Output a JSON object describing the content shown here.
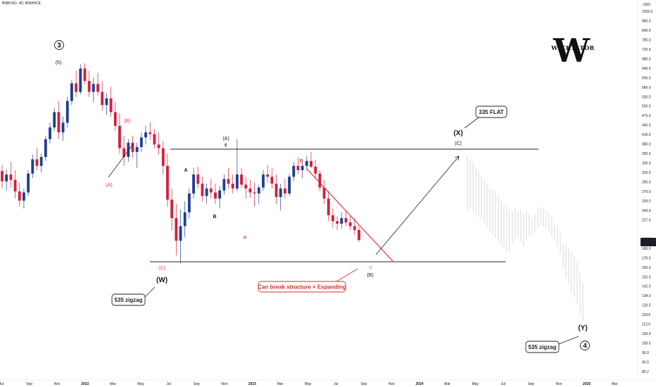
{
  "header": {
    "symbol": "BNBUSD, 4D, BINANCE",
    "currency": "USD"
  },
  "logo": {
    "letter": "W",
    "name": "WICKTATOR"
  },
  "price_axis": {
    "ticks": [
      "1025.0",
      "960.0",
      "845.0",
      "785.0",
      "725.0",
      "680.0",
      "645.0",
      "605.0",
      "566.0",
      "535.0",
      "505.0",
      "475.0",
      "445.0",
      "415.0",
      "385.0",
      "355.0",
      "335.0",
      "315.0",
      "295.0",
      "275.0",
      "259.0",
      "243.0",
      "227.0",
      "211.4",
      "190.5",
      "180.0",
      "170.0",
      "160.0",
      "152.0",
      "142.0",
      "134.0",
      "126.5",
      "118.6",
      "112.0",
      "106.0",
      "100.0",
      "95.0",
      "90.0",
      "85.2"
    ],
    "current_price": "211.4",
    "countdown": "3D 13H"
  },
  "time_axis": {
    "ticks": [
      "Jul",
      "Sep",
      "Nov",
      "2022",
      "Mar",
      "May",
      "Jul",
      "Sep",
      "Nov",
      "2023",
      "Mar",
      "May",
      "Jul",
      "Sep",
      "Nov",
      "2024",
      "Mar",
      "May",
      "Jul",
      "Sep",
      "Nov",
      "2025",
      "Mar"
    ]
  },
  "chart_data": {
    "type": "candlestick",
    "ylim": [
      85.2,
      1025.0
    ],
    "scale": "log",
    "levels": [
      {
        "name": "range high",
        "price": 405
      },
      {
        "name": "range low",
        "price": 185
      }
    ],
    "candles_ohlc_approx": [
      [
        338,
        352,
        300,
        315
      ],
      [
        315,
        342,
        296,
        330
      ],
      [
        330,
        360,
        302,
        318
      ],
      [
        318,
        340,
        280,
        294
      ],
      [
        294,
        312,
        265,
        276
      ],
      [
        276,
        300,
        262,
        292
      ],
      [
        292,
        340,
        285,
        332
      ],
      [
        332,
        378,
        322,
        366
      ],
      [
        366,
        395,
        340,
        350
      ],
      [
        350,
        380,
        335,
        372
      ],
      [
        372,
        430,
        362,
        420
      ],
      [
        420,
        470,
        408,
        455
      ],
      [
        455,
        520,
        445,
        505
      ],
      [
        505,
        545,
        420,
        440
      ],
      [
        440,
        490,
        415,
        470
      ],
      [
        470,
        560,
        455,
        545
      ],
      [
        545,
        630,
        530,
        615
      ],
      [
        615,
        670,
        560,
        580
      ],
      [
        580,
        700,
        570,
        680
      ],
      [
        680,
        705,
        610,
        625
      ],
      [
        625,
        670,
        560,
        580
      ],
      [
        580,
        640,
        540,
        612
      ],
      [
        612,
        660,
        565,
        580
      ],
      [
        580,
        625,
        510,
        530
      ],
      [
        530,
        575,
        495,
        555
      ],
      [
        555,
        600,
        490,
        505
      ],
      [
        505,
        540,
        445,
        460
      ],
      [
        460,
        500,
        380,
        395
      ],
      [
        395,
        430,
        350,
        372
      ],
      [
        372,
        420,
        360,
        410
      ],
      [
        410,
        430,
        370,
        385
      ],
      [
        385,
        410,
        345,
        398
      ],
      [
        398,
        440,
        385,
        425
      ],
      [
        425,
        460,
        405,
        440
      ],
      [
        440,
        470,
        418,
        435
      ],
      [
        435,
        450,
        395,
        405
      ],
      [
        405,
        440,
        378,
        395
      ],
      [
        395,
        415,
        330,
        350
      ],
      [
        350,
        380,
        265,
        278
      ],
      [
        278,
        300,
        225,
        245
      ],
      [
        245,
        270,
        190,
        210
      ],
      [
        210,
        260,
        180,
        232
      ],
      [
        232,
        275,
        215,
        255
      ],
      [
        255,
        300,
        245,
        290
      ],
      [
        290,
        345,
        280,
        330
      ],
      [
        330,
        348,
        300,
        310
      ],
      [
        310,
        325,
        275,
        285
      ],
      [
        285,
        310,
        270,
        300
      ],
      [
        300,
        320,
        280,
        292
      ],
      [
        292,
        310,
        270,
        280
      ],
      [
        280,
        305,
        262,
        296
      ],
      [
        296,
        330,
        288,
        320
      ],
      [
        320,
        345,
        300,
        310
      ],
      [
        310,
        330,
        290,
        300
      ],
      [
        300,
        420,
        295,
        330
      ],
      [
        330,
        345,
        300,
        308
      ],
      [
        308,
        325,
        280,
        300
      ],
      [
        300,
        318,
        282,
        292
      ],
      [
        292,
        312,
        265,
        290
      ],
      [
        290,
        308,
        270,
        302
      ],
      [
        302,
        340,
        295,
        330
      ],
      [
        330,
        352,
        312,
        325
      ],
      [
        325,
        345,
        300,
        310
      ],
      [
        310,
        330,
        270,
        283
      ],
      [
        283,
        310,
        258,
        300
      ],
      [
        300,
        320,
        280,
        290
      ],
      [
        290,
        332,
        285,
        325
      ],
      [
        325,
        360,
        315,
        350
      ],
      [
        350,
        372,
        330,
        340
      ],
      [
        340,
        358,
        322,
        350
      ],
      [
        350,
        375,
        340,
        362
      ],
      [
        362,
        385,
        345,
        348
      ],
      [
        348,
        365,
        320,
        332
      ],
      [
        332,
        340,
        295,
        302
      ],
      [
        302,
        318,
        270,
        280
      ],
      [
        280,
        295,
        240,
        250
      ],
      [
        250,
        262,
        230,
        240
      ],
      [
        240,
        248,
        226,
        236
      ],
      [
        236,
        255,
        228,
        245
      ],
      [
        245,
        258,
        232,
        238
      ],
      [
        238,
        250,
        226,
        232
      ],
      [
        232,
        245,
        218,
        226
      ],
      [
        226,
        232,
        208,
        211
      ]
    ],
    "annotations": [
      {
        "text": "3",
        "style": "circle"
      },
      {
        "text": "(5)"
      },
      {
        "text": "(B)",
        "color": "#e53935"
      },
      {
        "text": "(A)",
        "color": "#e53935"
      },
      {
        "text": "A"
      },
      {
        "text": "B"
      },
      {
        "text": "(A)"
      },
      {
        "text": "c"
      },
      {
        "text": "a",
        "color": "#e53935"
      },
      {
        "text": "B",
        "color": "#e53935"
      },
      {
        "text": "(C)",
        "color": "#e53935"
      },
      {
        "text": "c",
        "color": "#e53935"
      },
      {
        "text": "(B)"
      },
      {
        "text": "(W)"
      },
      {
        "text": "(X)"
      },
      {
        "text": "(C)"
      },
      {
        "text": "(Y)"
      },
      {
        "text": "4",
        "style": "circle"
      }
    ],
    "callouts": [
      {
        "text": "535 zigzag"
      },
      {
        "text": "Can break structure = Expanding",
        "color": "#d32f2f"
      },
      {
        "text": "335 FLAT"
      },
      {
        "text": "535 zigzag"
      }
    ]
  }
}
